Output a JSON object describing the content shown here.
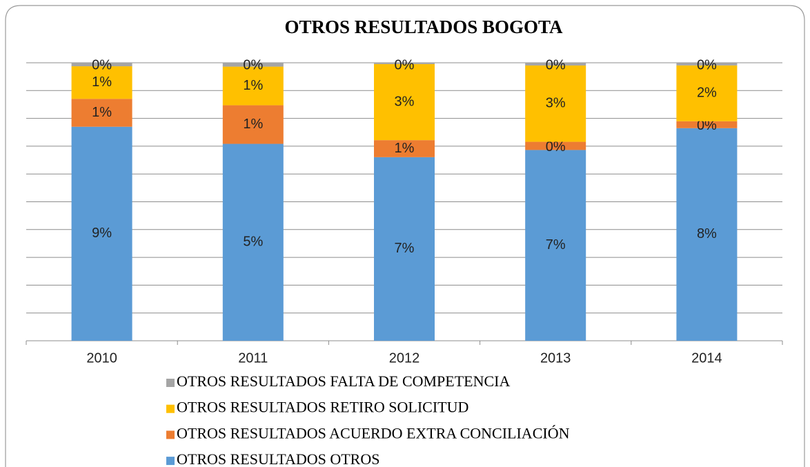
{
  "chart_data": {
    "type": "bar",
    "stacked": "percent",
    "grid": true,
    "title": "OTROS RESULTADOS  BOGOTA",
    "categories": [
      "2010",
      "2011",
      "2012",
      "2013",
      "2014"
    ],
    "series": [
      {
        "name": "OTROS RESULTADOS OTROS",
        "color": "#5b9bd5",
        "values": [
          9.2,
          5.1,
          7.0,
          7.0,
          8.0
        ],
        "value_labels": [
          "9%",
          "5%",
          "7%",
          "7%",
          "8%"
        ]
      },
      {
        "name": "OTROS RESULTADOS ACUERDO EXTRA CONCILIACIÓN",
        "color": "#ed7d31",
        "values": [
          1.2,
          1.0,
          0.65,
          0.3,
          0.26
        ],
        "value_labels": [
          "1%",
          "1%",
          "1%",
          "0%",
          "0%"
        ]
      },
      {
        "name": "OTROS RESULTADOS RETIRO  SOLICITUD",
        "color": "#ffc000",
        "values": [
          1.4,
          1.0,
          2.9,
          2.8,
          2.1
        ],
        "value_labels": [
          "1%",
          "1%",
          "3%",
          "3%",
          "2%"
        ]
      },
      {
        "name": "OTROS RESULTADOS FALTA DE COMPETENCIA",
        "color": "#a5a5a5",
        "values": [
          0.15,
          0.1,
          0.05,
          0.1,
          0.1
        ],
        "value_labels": [
          "0%",
          "0%",
          "0%",
          "0%",
          "0%"
        ]
      }
    ]
  }
}
